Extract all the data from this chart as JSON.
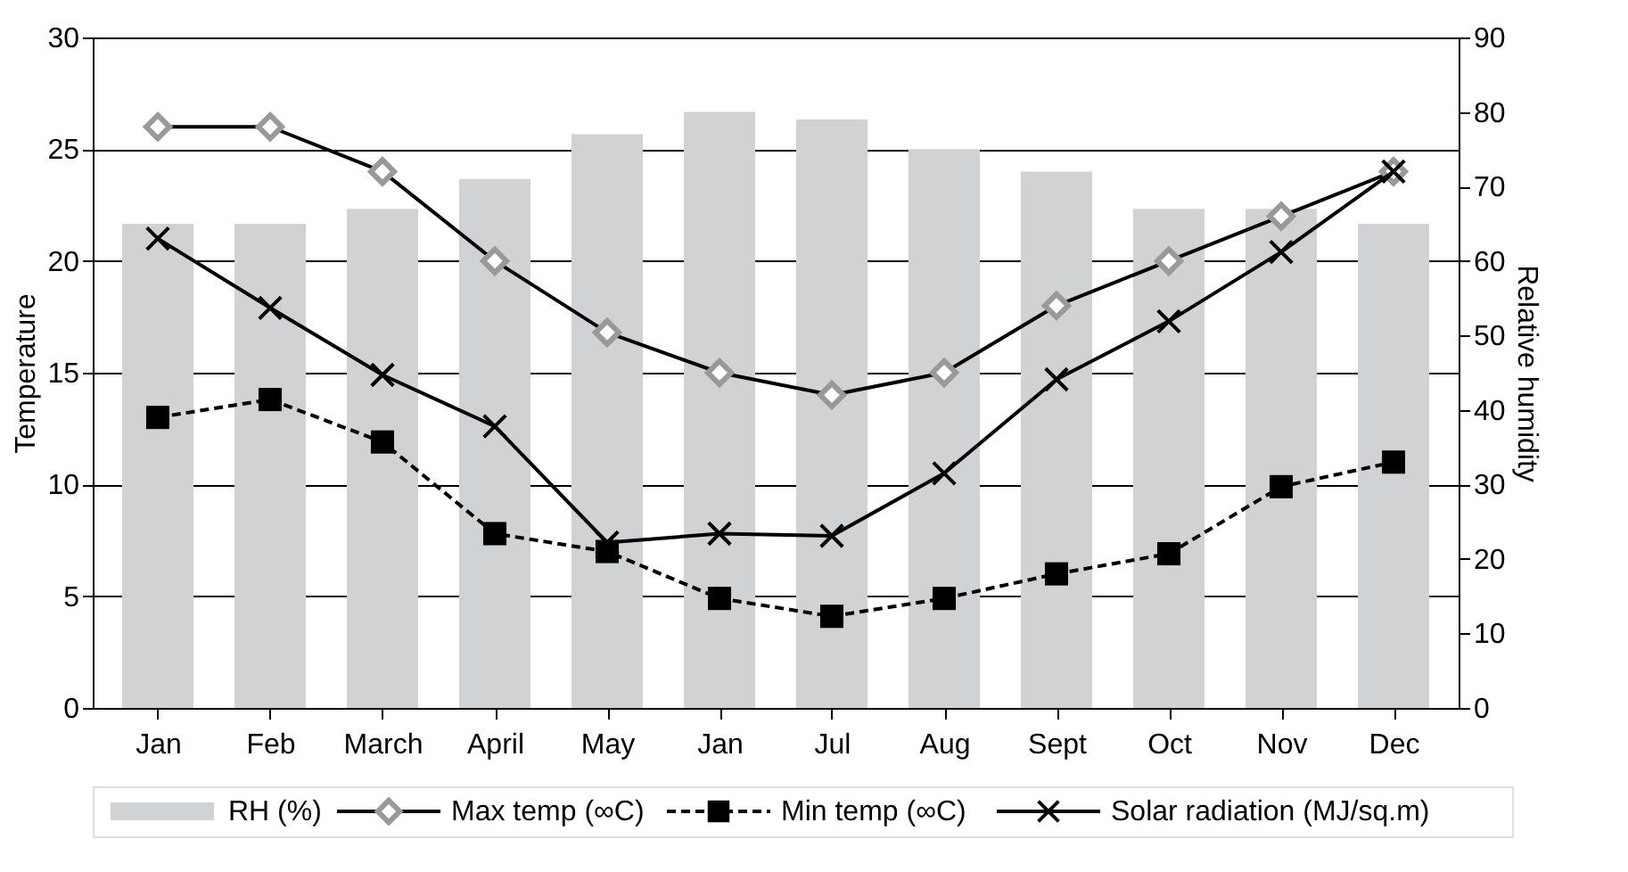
{
  "chart_data": {
    "type": "line",
    "categories": [
      "Jan",
      "Feb",
      "March",
      "April",
      "May",
      "Jan",
      "Jul",
      "Aug",
      "Sept",
      "Oct",
      "Nov",
      "Dec"
    ],
    "ylabel": "Temperature",
    "y2label": "Relative humidity",
    "ylim": [
      0,
      30
    ],
    "yticks": [
      0,
      5,
      10,
      15,
      20,
      25,
      30
    ],
    "y2lim": [
      0,
      90
    ],
    "y2ticks": [
      0,
      10,
      20,
      30,
      40,
      50,
      60,
      70,
      80,
      90
    ],
    "grid": "y",
    "legend": "bottom",
    "series": [
      {
        "name": "RH (%)",
        "type": "bar",
        "axis": "y2",
        "color": "#d1d2d4",
        "values": [
          65,
          65,
          67,
          71,
          77,
          80,
          79,
          75,
          72,
          67,
          67,
          65
        ]
      },
      {
        "name": "Max temp (∞C)",
        "color": "#000000",
        "marker": "diamond",
        "line_style": "solid",
        "values": [
          26,
          26,
          24,
          20,
          16.8,
          15,
          14,
          15,
          18,
          20,
          22,
          24
        ]
      },
      {
        "name": "Min temp (∞C)",
        "color": "#000000",
        "marker": "square",
        "line_style": "dashed",
        "values": [
          13,
          13.8,
          11.9,
          7.8,
          7,
          4.9,
          4.1,
          4.9,
          6,
          6.9,
          9.9,
          11
        ]
      },
      {
        "name": "Solar radiation (MJ/sq.m)",
        "color": "#000000",
        "marker": "cross",
        "line_style": "solid",
        "values": [
          21,
          17.9,
          14.9,
          12.6,
          7.4,
          7.8,
          7.7,
          10.5,
          14.7,
          17.3,
          20.4,
          24
        ]
      }
    ]
  }
}
